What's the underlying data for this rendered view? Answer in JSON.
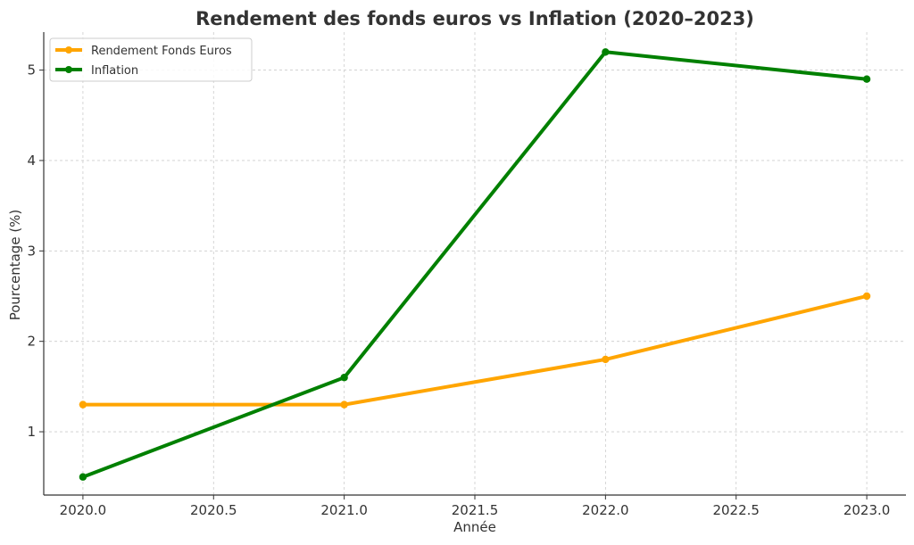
{
  "chart_data": {
    "type": "line",
    "title": "Rendement des fonds euros vs Inflation (2020–2023)",
    "xlabel": "Année",
    "ylabel": "Pourcentage (%)",
    "x": [
      2020.0,
      2021.0,
      2022.0,
      2023.0
    ],
    "xlim": [
      2019.85,
      2023.15
    ],
    "ylim": [
      0.3,
      5.42
    ],
    "xticks": [
      2020.0,
      2020.5,
      2021.0,
      2021.5,
      2022.0,
      2022.5,
      2023.0
    ],
    "xtick_labels": [
      "2020.0",
      "2020.5",
      "2021.0",
      "2021.5",
      "2022.0",
      "2022.5",
      "2023.0"
    ],
    "yticks": [
      1,
      2,
      3,
      4,
      5
    ],
    "ytick_labels": [
      "1",
      "2",
      "3",
      "4",
      "5"
    ],
    "grid": true,
    "legend_position": "top-left",
    "series": [
      {
        "name": "Rendement Fonds Euros",
        "color": "#ffa500",
        "values": [
          1.3,
          1.3,
          1.8,
          2.5
        ]
      },
      {
        "name": "Inflation",
        "color": "#008000",
        "values": [
          0.5,
          1.6,
          5.2,
          4.9
        ]
      }
    ]
  }
}
